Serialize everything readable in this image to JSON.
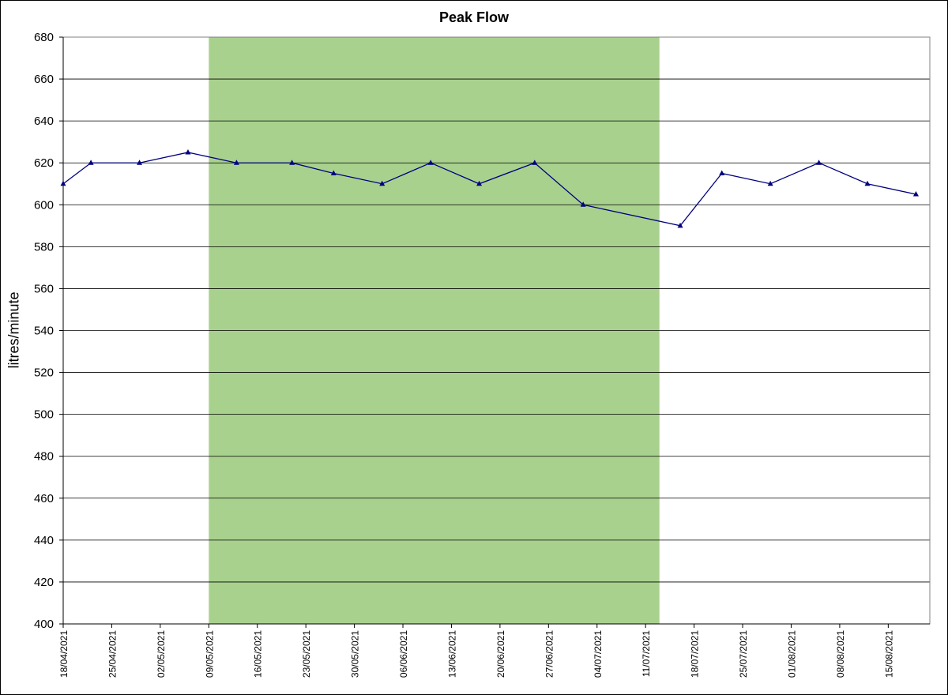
{
  "chart_data": {
    "type": "line",
    "title": "Peak Flow",
    "xlabel": "",
    "ylabel": "litres/minute",
    "ylim": [
      400,
      680
    ],
    "y_ticks": [
      400,
      420,
      440,
      460,
      480,
      500,
      520,
      540,
      560,
      580,
      600,
      620,
      640,
      660,
      680
    ],
    "xlim": [
      "2021-04-18",
      "2021-08-21"
    ],
    "x_tick_labels": [
      "18/04/2021",
      "25/04/2021",
      "02/05/2021",
      "09/05/2021",
      "16/05/2021",
      "23/05/2021",
      "30/05/2021",
      "06/06/2021",
      "13/06/2021",
      "20/06/2021",
      "27/06/2021",
      "04/07/2021",
      "11/07/2021",
      "18/07/2021",
      "25/07/2021",
      "01/08/2021",
      "08/08/2021",
      "15/08/2021"
    ],
    "grid": "horizontal",
    "shaded_region": {
      "start": "2021-05-09",
      "end": "2021-07-13",
      "color": "#a9d18e"
    },
    "series": [
      {
        "color": "#000080",
        "marker": "triangle",
        "x": [
          "2021-04-18",
          "2021-04-22",
          "2021-04-29",
          "2021-05-06",
          "2021-05-13",
          "2021-05-21",
          "2021-05-27",
          "2021-06-03",
          "2021-06-10",
          "2021-06-17",
          "2021-06-25",
          "2021-07-02",
          "2021-07-16",
          "2021-07-22",
          "2021-07-29",
          "2021-08-05",
          "2021-08-12",
          "2021-08-19"
        ],
        "y": [
          610,
          620,
          620,
          625,
          620,
          620,
          615,
          610,
          620,
          610,
          620,
          600,
          590,
          615,
          610,
          620,
          610,
          605
        ]
      }
    ]
  }
}
